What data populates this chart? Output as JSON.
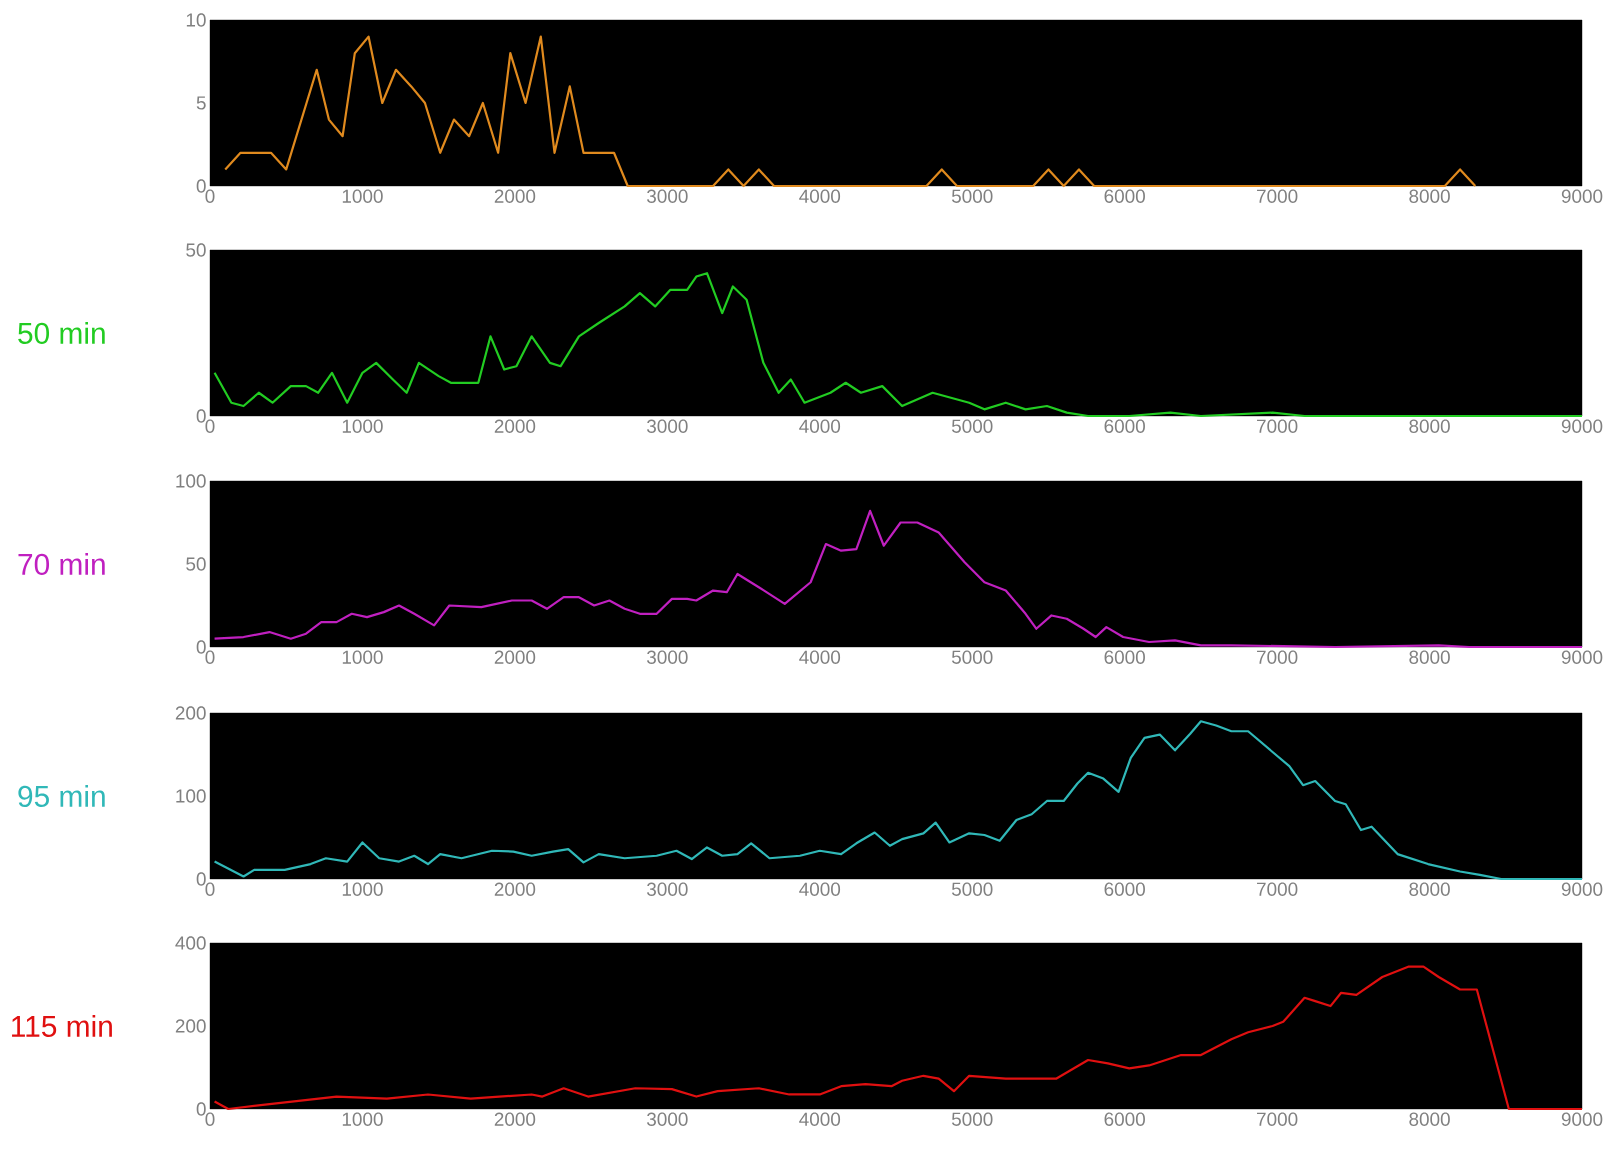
{
  "chart_data": [
    {
      "type": "line",
      "xlim": [
        0,
        9000
      ],
      "xticks": [
        0,
        1000,
        2000,
        3000,
        4000,
        5000,
        6000,
        7000,
        8000,
        9000
      ],
      "ylim": [
        0,
        10
      ],
      "yticks": [
        0,
        5,
        10
      ],
      "series": [
        {
          "color": "#e08a1e",
          "x": [
            100,
            200,
            300,
            400,
            500,
            700,
            780,
            870,
            950,
            1040,
            1130,
            1220,
            1320,
            1410,
            1510,
            1600,
            1700,
            1790,
            1890,
            1970,
            2070,
            2170,
            2260,
            2360,
            2450,
            2650,
            2740,
            3300,
            3400,
            3500,
            3600,
            3700,
            4700,
            4800,
            4900,
            5400,
            5500,
            5600,
            5700,
            5800,
            8100,
            8200,
            8300
          ],
          "values": [
            1,
            2,
            2,
            2,
            1,
            7,
            4,
            3,
            8,
            9,
            5,
            7,
            6,
            5,
            2,
            4,
            3,
            5,
            2,
            8,
            5,
            9,
            2,
            6,
            2,
            2,
            0,
            0,
            1,
            0,
            1,
            0,
            0,
            1,
            0,
            0,
            1,
            0,
            1,
            0,
            0,
            1,
            0
          ]
        }
      ]
    },
    {
      "type": "line",
      "ylabel": "50 min",
      "xlim": [
        0,
        9000
      ],
      "xticks": [
        0,
        1000,
        2000,
        3000,
        4000,
        5000,
        6000,
        7000,
        8000,
        9000
      ],
      "ylim": [
        0,
        50
      ],
      "yticks": [
        0,
        50
      ],
      "series": [
        {
          "color": "#22cc22",
          "x": [
            30,
            140,
            220,
            320,
            410,
            530,
            630,
            710,
            800,
            900,
            1000,
            1090,
            1200,
            1290,
            1370,
            1500,
            1580,
            1710,
            1760,
            1840,
            1930,
            2010,
            2110,
            2230,
            2300,
            2420,
            2550,
            2720,
            2820,
            2920,
            3020,
            3130,
            3190,
            3260,
            3360,
            3430,
            3520,
            3630,
            3730,
            3810,
            3900,
            4070,
            4170,
            4270,
            4410,
            4540,
            4740,
            4980,
            5080,
            5220,
            5350,
            5490,
            5620,
            5760,
            6030,
            6300,
            6500,
            6970,
            7180,
            9000
          ],
          "values": [
            13,
            4,
            3,
            7,
            4,
            9,
            9,
            7,
            13,
            4,
            13,
            16,
            11,
            7,
            16,
            12,
            10,
            10,
            10,
            24,
            14,
            15,
            24,
            16,
            15,
            24,
            28,
            33,
            37,
            33,
            38,
            38,
            42,
            43,
            31,
            39,
            35,
            16,
            7,
            11,
            4,
            7,
            10,
            7,
            9,
            3,
            7,
            4,
            2,
            4,
            2,
            3,
            1,
            0,
            0,
            1,
            0,
            1,
            0,
            0
          ]
        }
      ]
    },
    {
      "type": "line",
      "ylabel": "70 min",
      "xlim": [
        0,
        9000
      ],
      "xticks": [
        0,
        1000,
        2000,
        3000,
        4000,
        5000,
        6000,
        7000,
        8000,
        9000
      ],
      "ylim": [
        0,
        100
      ],
      "yticks": [
        0,
        50,
        100
      ],
      "series": [
        {
          "color": "#c020c0",
          "x": [
            30,
            220,
            390,
            530,
            630,
            730,
            830,
            930,
            1030,
            1140,
            1240,
            1340,
            1470,
            1570,
            1780,
            1980,
            2110,
            2210,
            2320,
            2420,
            2520,
            2620,
            2720,
            2820,
            2930,
            3030,
            3130,
            3190,
            3300,
            3390,
            3460,
            3600,
            3770,
            3940,
            4040,
            4140,
            4240,
            4330,
            4420,
            4530,
            4640,
            4780,
            4950,
            5080,
            5220,
            5350,
            5420,
            5520,
            5620,
            5730,
            5810,
            5880,
            5990,
            6160,
            6330,
            6500,
            6700,
            7380,
            8060,
            8260,
            9000
          ],
          "values": [
            5,
            6,
            9,
            5,
            8,
            15,
            15,
            20,
            18,
            21,
            25,
            20,
            13,
            25,
            24,
            28,
            28,
            23,
            30,
            30,
            25,
            28,
            23,
            20,
            20,
            29,
            29,
            28,
            34,
            33,
            44,
            36,
            26,
            39,
            62,
            58,
            59,
            82,
            61,
            75,
            75,
            69,
            51,
            39,
            34,
            20,
            11,
            19,
            17,
            11,
            6,
            12,
            6,
            3,
            4,
            1,
            1,
            0,
            1,
            0,
            0
          ]
        }
      ]
    },
    {
      "type": "line",
      "ylabel": "95 min",
      "xlim": [
        0,
        9000
      ],
      "xticks": [
        0,
        1000,
        2000,
        3000,
        4000,
        5000,
        6000,
        7000,
        8000,
        9000
      ],
      "ylim": [
        0,
        200
      ],
      "yticks": [
        0,
        100,
        200
      ],
      "series": [
        {
          "color": "#30b8b8",
          "x": [
            30,
            220,
            290,
            490,
            660,
            760,
            900,
            1000,
            1110,
            1240,
            1340,
            1430,
            1510,
            1650,
            1850,
            1990,
            2110,
            2250,
            2350,
            2450,
            2550,
            2720,
            2930,
            3060,
            3160,
            3260,
            3360,
            3460,
            3550,
            3670,
            3870,
            4000,
            4140,
            4240,
            4360,
            4460,
            4540,
            4680,
            4760,
            4850,
            4980,
            5080,
            5180,
            5290,
            5390,
            5490,
            5600,
            5690,
            5760,
            5860,
            5960,
            6040,
            6130,
            6230,
            6330,
            6430,
            6500,
            6600,
            6700,
            6810,
            6970,
            7080,
            7170,
            7250,
            7380,
            7450,
            7550,
            7620,
            7790,
            7990,
            8200,
            8330,
            8470,
            9000
          ],
          "values": [
            21,
            3,
            11,
            11,
            18,
            25,
            21,
            44,
            25,
            21,
            28,
            18,
            30,
            25,
            34,
            33,
            28,
            33,
            36,
            20,
            30,
            25,
            28,
            34,
            24,
            38,
            28,
            30,
            43,
            25,
            28,
            34,
            30,
            43,
            56,
            40,
            48,
            55,
            68,
            44,
            55,
            53,
            46,
            71,
            78,
            94,
            94,
            115,
            128,
            121,
            105,
            146,
            170,
            174,
            155,
            175,
            190,
            185,
            178,
            178,
            153,
            136,
            113,
            118,
            94,
            90,
            59,
            63,
            30,
            18,
            9,
            5,
            0,
            0
          ]
        }
      ]
    },
    {
      "type": "line",
      "ylabel": "115 min",
      "xlim": [
        0,
        9000
      ],
      "xticks": [
        0,
        1000,
        2000,
        3000,
        4000,
        5000,
        6000,
        7000,
        8000,
        9000
      ],
      "ylim": [
        0,
        400
      ],
      "yticks": [
        0,
        200,
        400
      ],
      "series": [
        {
          "color": "#e01010",
          "x": [
            30,
            120,
            420,
            830,
            1160,
            1430,
            1710,
            2110,
            2180,
            2320,
            2480,
            2790,
            3030,
            3190,
            3330,
            3600,
            3800,
            4000,
            4140,
            4300,
            4470,
            4540,
            4680,
            4780,
            4880,
            4980,
            5220,
            5350,
            5550,
            5760,
            5890,
            6030,
            6160,
            6370,
            6500,
            6700,
            6810,
            6970,
            7040,
            7180,
            7250,
            7350,
            7420,
            7520,
            7690,
            7860,
            7960,
            8060,
            8200,
            8310,
            8520,
            9000
          ],
          "values": [
            18,
            0,
            13,
            30,
            25,
            35,
            25,
            35,
            30,
            50,
            30,
            50,
            48,
            30,
            43,
            50,
            35,
            35,
            55,
            60,
            55,
            68,
            80,
            73,
            43,
            80,
            73,
            73,
            73,
            118,
            110,
            98,
            105,
            130,
            130,
            168,
            185,
            200,
            210,
            268,
            260,
            248,
            280,
            275,
            318,
            343,
            343,
            318,
            288,
            288,
            0,
            0
          ]
        }
      ]
    }
  ]
}
